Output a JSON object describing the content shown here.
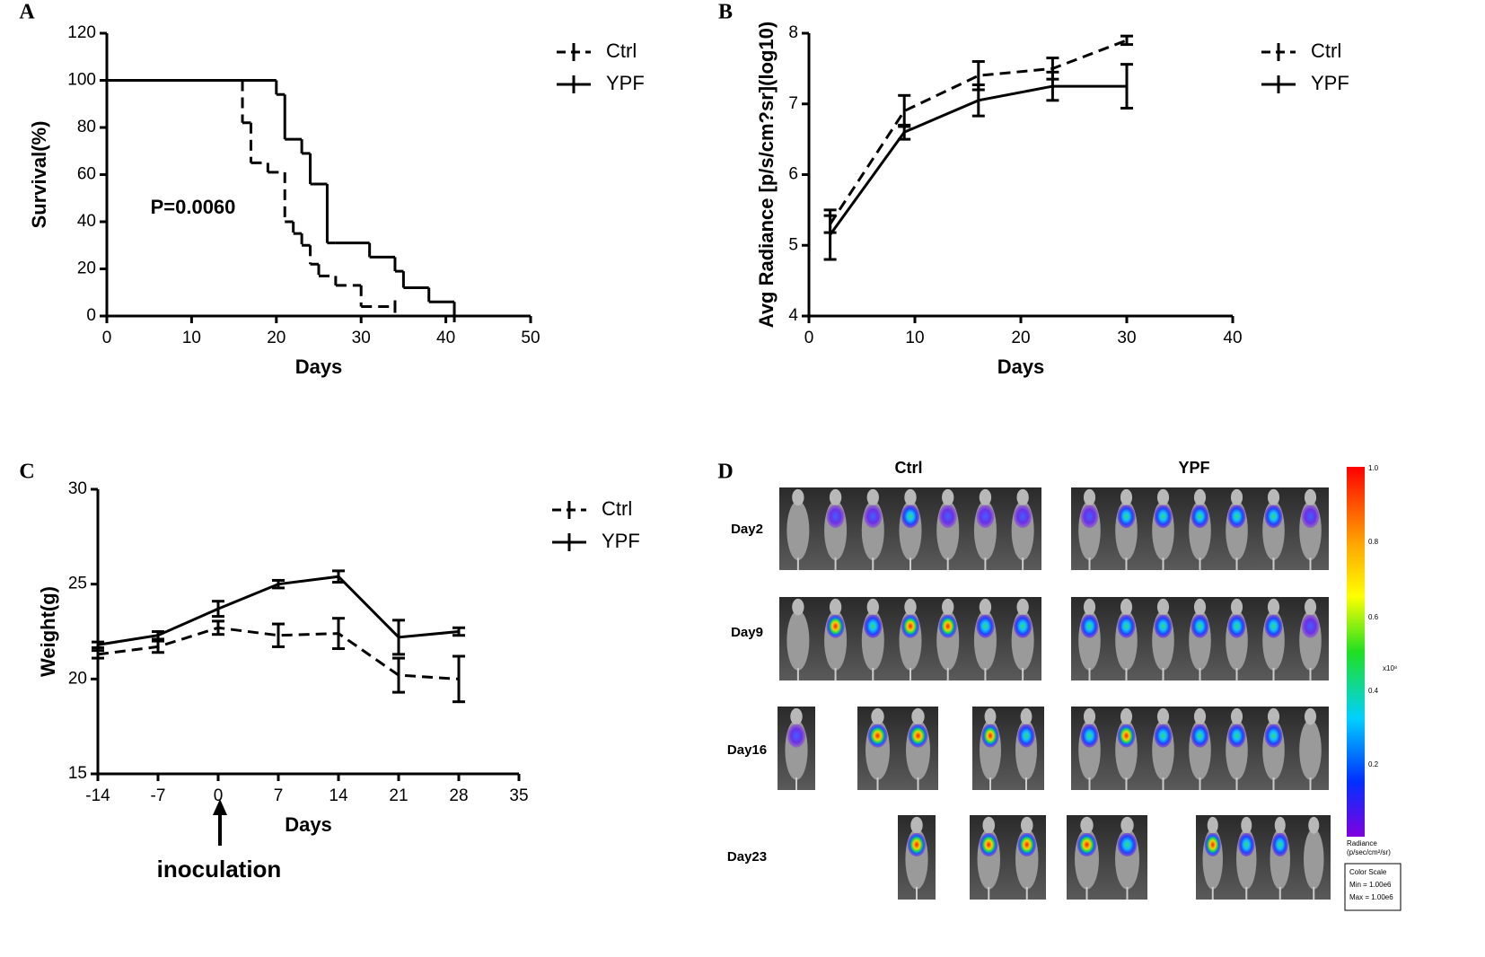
{
  "chart_data": [
    {
      "type": "step",
      "panel": "A",
      "xlabel": "Days",
      "ylabel": "Survival(%)",
      "annotation": "P=0.0060",
      "xlim": [
        0,
        50
      ],
      "xticks": [
        0,
        10,
        20,
        30,
        40,
        50
      ],
      "ylim": [
        0,
        120
      ],
      "yticks": [
        0,
        20,
        40,
        60,
        80,
        100,
        120
      ],
      "series": [
        {
          "name": "Ctrl",
          "color": "#000000",
          "linestyle": "dashed",
          "x": [
            0,
            16,
            17,
            19,
            21,
            22,
            23,
            24,
            25,
            27,
            30,
            34
          ],
          "values": [
            100,
            82,
            65,
            61,
            40,
            35,
            30,
            22,
            17,
            13,
            4,
            4
          ]
        },
        {
          "name": "YPF",
          "color": "#000000",
          "linestyle": "solid",
          "x": [
            0,
            20,
            21,
            23,
            24,
            26,
            27,
            31,
            34,
            35,
            38,
            41
          ],
          "values": [
            100,
            94,
            75,
            69,
            56,
            31,
            31,
            25,
            19,
            12,
            6,
            0
          ]
        }
      ]
    },
    {
      "type": "line",
      "panel": "B",
      "xlabel": "Days",
      "ylabel": "Avg Radiance [p/s/cm?sr](log10)",
      "xlim": [
        0,
        40
      ],
      "xticks": [
        0,
        10,
        20,
        30,
        40
      ],
      "ylim": [
        4,
        8
      ],
      "yticks": [
        4,
        5,
        6,
        7,
        8
      ],
      "x": [
        2,
        9,
        16,
        23,
        30
      ],
      "series": [
        {
          "name": "Ctrl",
          "color": "#000000",
          "linestyle": "dashed",
          "values": [
            5.3,
            6.9,
            7.4,
            7.5,
            7.9
          ],
          "errors": [
            0.12,
            0.22,
            0.2,
            0.15,
            0.06
          ]
        },
        {
          "name": "YPF",
          "color": "#000000",
          "linestyle": "solid",
          "values": [
            5.15,
            6.6,
            7.05,
            7.25,
            7.25
          ],
          "errors": [
            0.35,
            0.1,
            0.22,
            0.2,
            0.31
          ]
        }
      ]
    },
    {
      "type": "line",
      "panel": "C",
      "xlabel": "Days",
      "ylabel": "Weight(g)",
      "annotation": "inoculation",
      "xlim": [
        -14,
        35
      ],
      "xticks": [
        -14,
        -7,
        0,
        7,
        14,
        21,
        28,
        35
      ],
      "ylim": [
        15,
        30
      ],
      "yticks": [
        15,
        20,
        25,
        30
      ],
      "x": [
        -14,
        -7,
        0,
        7,
        14,
        21,
        28
      ],
      "series": [
        {
          "name": "Ctrl",
          "color": "#000000",
          "linestyle": "dashed",
          "values": [
            21.3,
            21.7,
            22.7,
            22.3,
            22.4,
            20.2,
            20.0
          ],
          "errors": [
            0.2,
            0.3,
            0.35,
            0.6,
            0.8,
            0.9,
            1.2
          ]
        },
        {
          "name": "YPF",
          "color": "#000000",
          "linestyle": "solid",
          "values": [
            21.8,
            22.3,
            23.7,
            25.0,
            25.4,
            22.2,
            22.5
          ],
          "errors": [
            0.15,
            0.2,
            0.4,
            0.2,
            0.3,
            0.9,
            0.2
          ]
        }
      ]
    }
  ],
  "panel_d": {
    "panel": "D",
    "groups": [
      "Ctrl",
      "YPF"
    ],
    "rows": [
      "Day2",
      "Day9",
      "Day16",
      "Day23"
    ],
    "colorbar_ticks": [
      "1.0",
      "0.8",
      "0.6",
      "0.4",
      "0.2"
    ],
    "colorbar_unit": "x10⁸",
    "colorbar_title": [
      "Radiance",
      "(p/sec/cm²/sr)"
    ],
    "color_scale": [
      "Color Scale",
      "Min = 1.00e6",
      "Max = 1.00e6"
    ]
  }
}
